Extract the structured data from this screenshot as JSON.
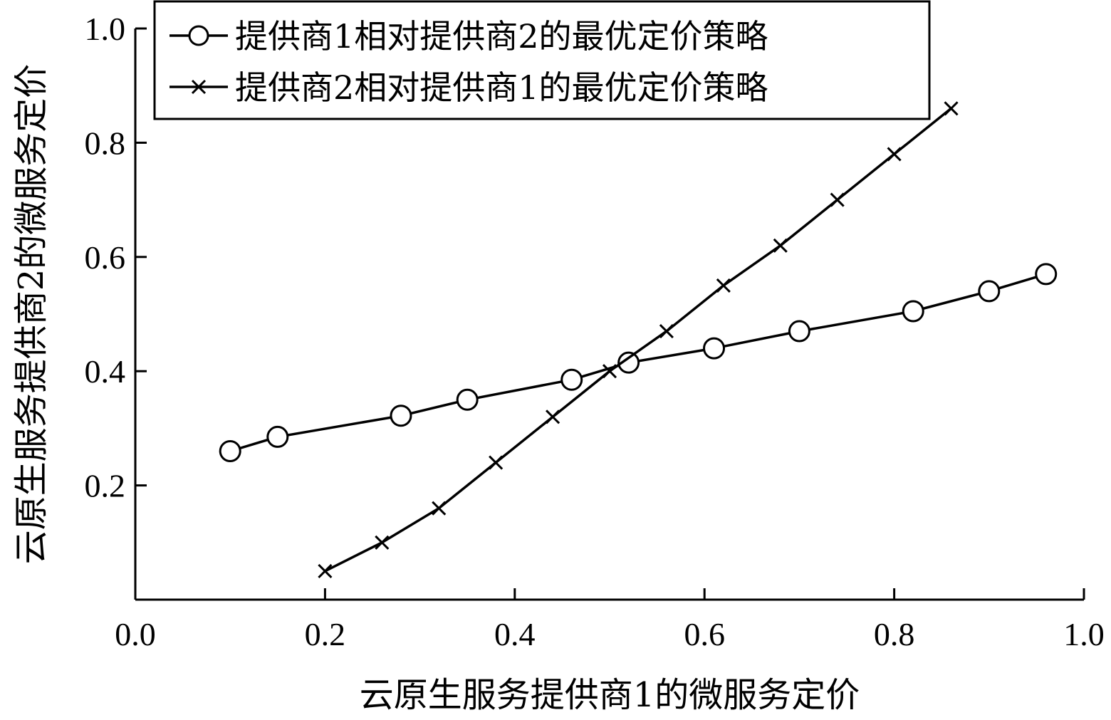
{
  "chart_data": {
    "type": "line",
    "title": "",
    "xlabel": "云原生服务提供商1的微服务定价",
    "ylabel": "云原生服务提供商2的微服务定价",
    "xlim": [
      0.0,
      1.0
    ],
    "ylim": [
      0.0,
      1.0
    ],
    "xticks": [
      "0.0",
      "0.2",
      "0.4",
      "0.6",
      "0.8",
      "1.0"
    ],
    "yticks": [
      "0.2",
      "0.4",
      "0.6",
      "0.8",
      "1.0"
    ],
    "grid": false,
    "legend_position": "top-left",
    "series": [
      {
        "name": "提供商1相对提供商2的最优定价策略",
        "marker": "circle",
        "x": [
          0.1,
          0.15,
          0.28,
          0.35,
          0.46,
          0.52,
          0.61,
          0.7,
          0.82,
          0.9,
          0.96
        ],
        "y": [
          0.26,
          0.285,
          0.322,
          0.35,
          0.385,
          0.415,
          0.44,
          0.47,
          0.505,
          0.54,
          0.57
        ]
      },
      {
        "name": "提供商2相对提供商1的最优定价策略",
        "marker": "x",
        "x": [
          0.2,
          0.26,
          0.32,
          0.38,
          0.44,
          0.5,
          0.56,
          0.62,
          0.68,
          0.74,
          0.8,
          0.86
        ],
        "y": [
          0.05,
          0.1,
          0.16,
          0.24,
          0.32,
          0.4,
          0.47,
          0.55,
          0.62,
          0.7,
          0.78,
          0.86
        ]
      }
    ]
  }
}
